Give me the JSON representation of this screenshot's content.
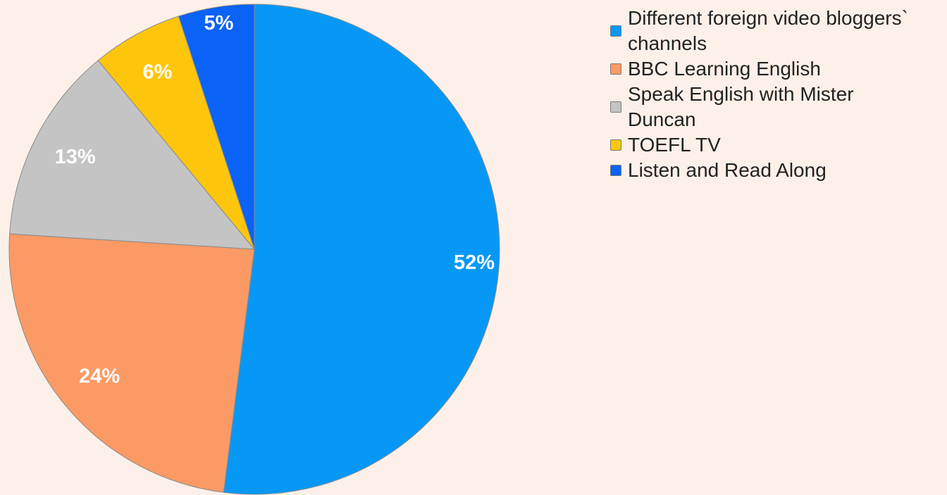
{
  "chart_data": {
    "type": "pie",
    "slices": [
      {
        "label": "Different foreign video bloggers` channels",
        "value": 52,
        "display": "52%",
        "color": "#0798f6"
      },
      {
        "label": "BBC Learning English",
        "value": 24,
        "display": "24%",
        "color": "#fb9a64"
      },
      {
        "label": "Speak English with Mister Duncan",
        "value": 13,
        "display": "13%",
        "color": "#c4c4c4"
      },
      {
        "label": "TOEFL TV",
        "value": 6,
        "display": "6%",
        "color": "#fdc60d"
      },
      {
        "label": "Listen and Read Along",
        "value": 5,
        "display": "5%",
        "color": "#0a62f6"
      }
    ],
    "start_angle_deg": 0,
    "direction": "clockwise",
    "legend_position": "right"
  },
  "legend": {
    "items": [
      {
        "label": "Different foreign video bloggers` channels",
        "color": "#0798f6",
        "icon": "square-swatch"
      },
      {
        "label": "BBC Learning English",
        "color": "#fb9a64",
        "icon": "square-swatch"
      },
      {
        "label": "Speak English with Mister Duncan",
        "color": "#c4c4c4",
        "icon": "square-swatch"
      },
      {
        "label": "TOEFL TV",
        "color": "#fdc60d",
        "icon": "square-swatch"
      },
      {
        "label": "Listen and Read Along",
        "color": "#0a62f6",
        "icon": "square-swatch"
      }
    ]
  }
}
